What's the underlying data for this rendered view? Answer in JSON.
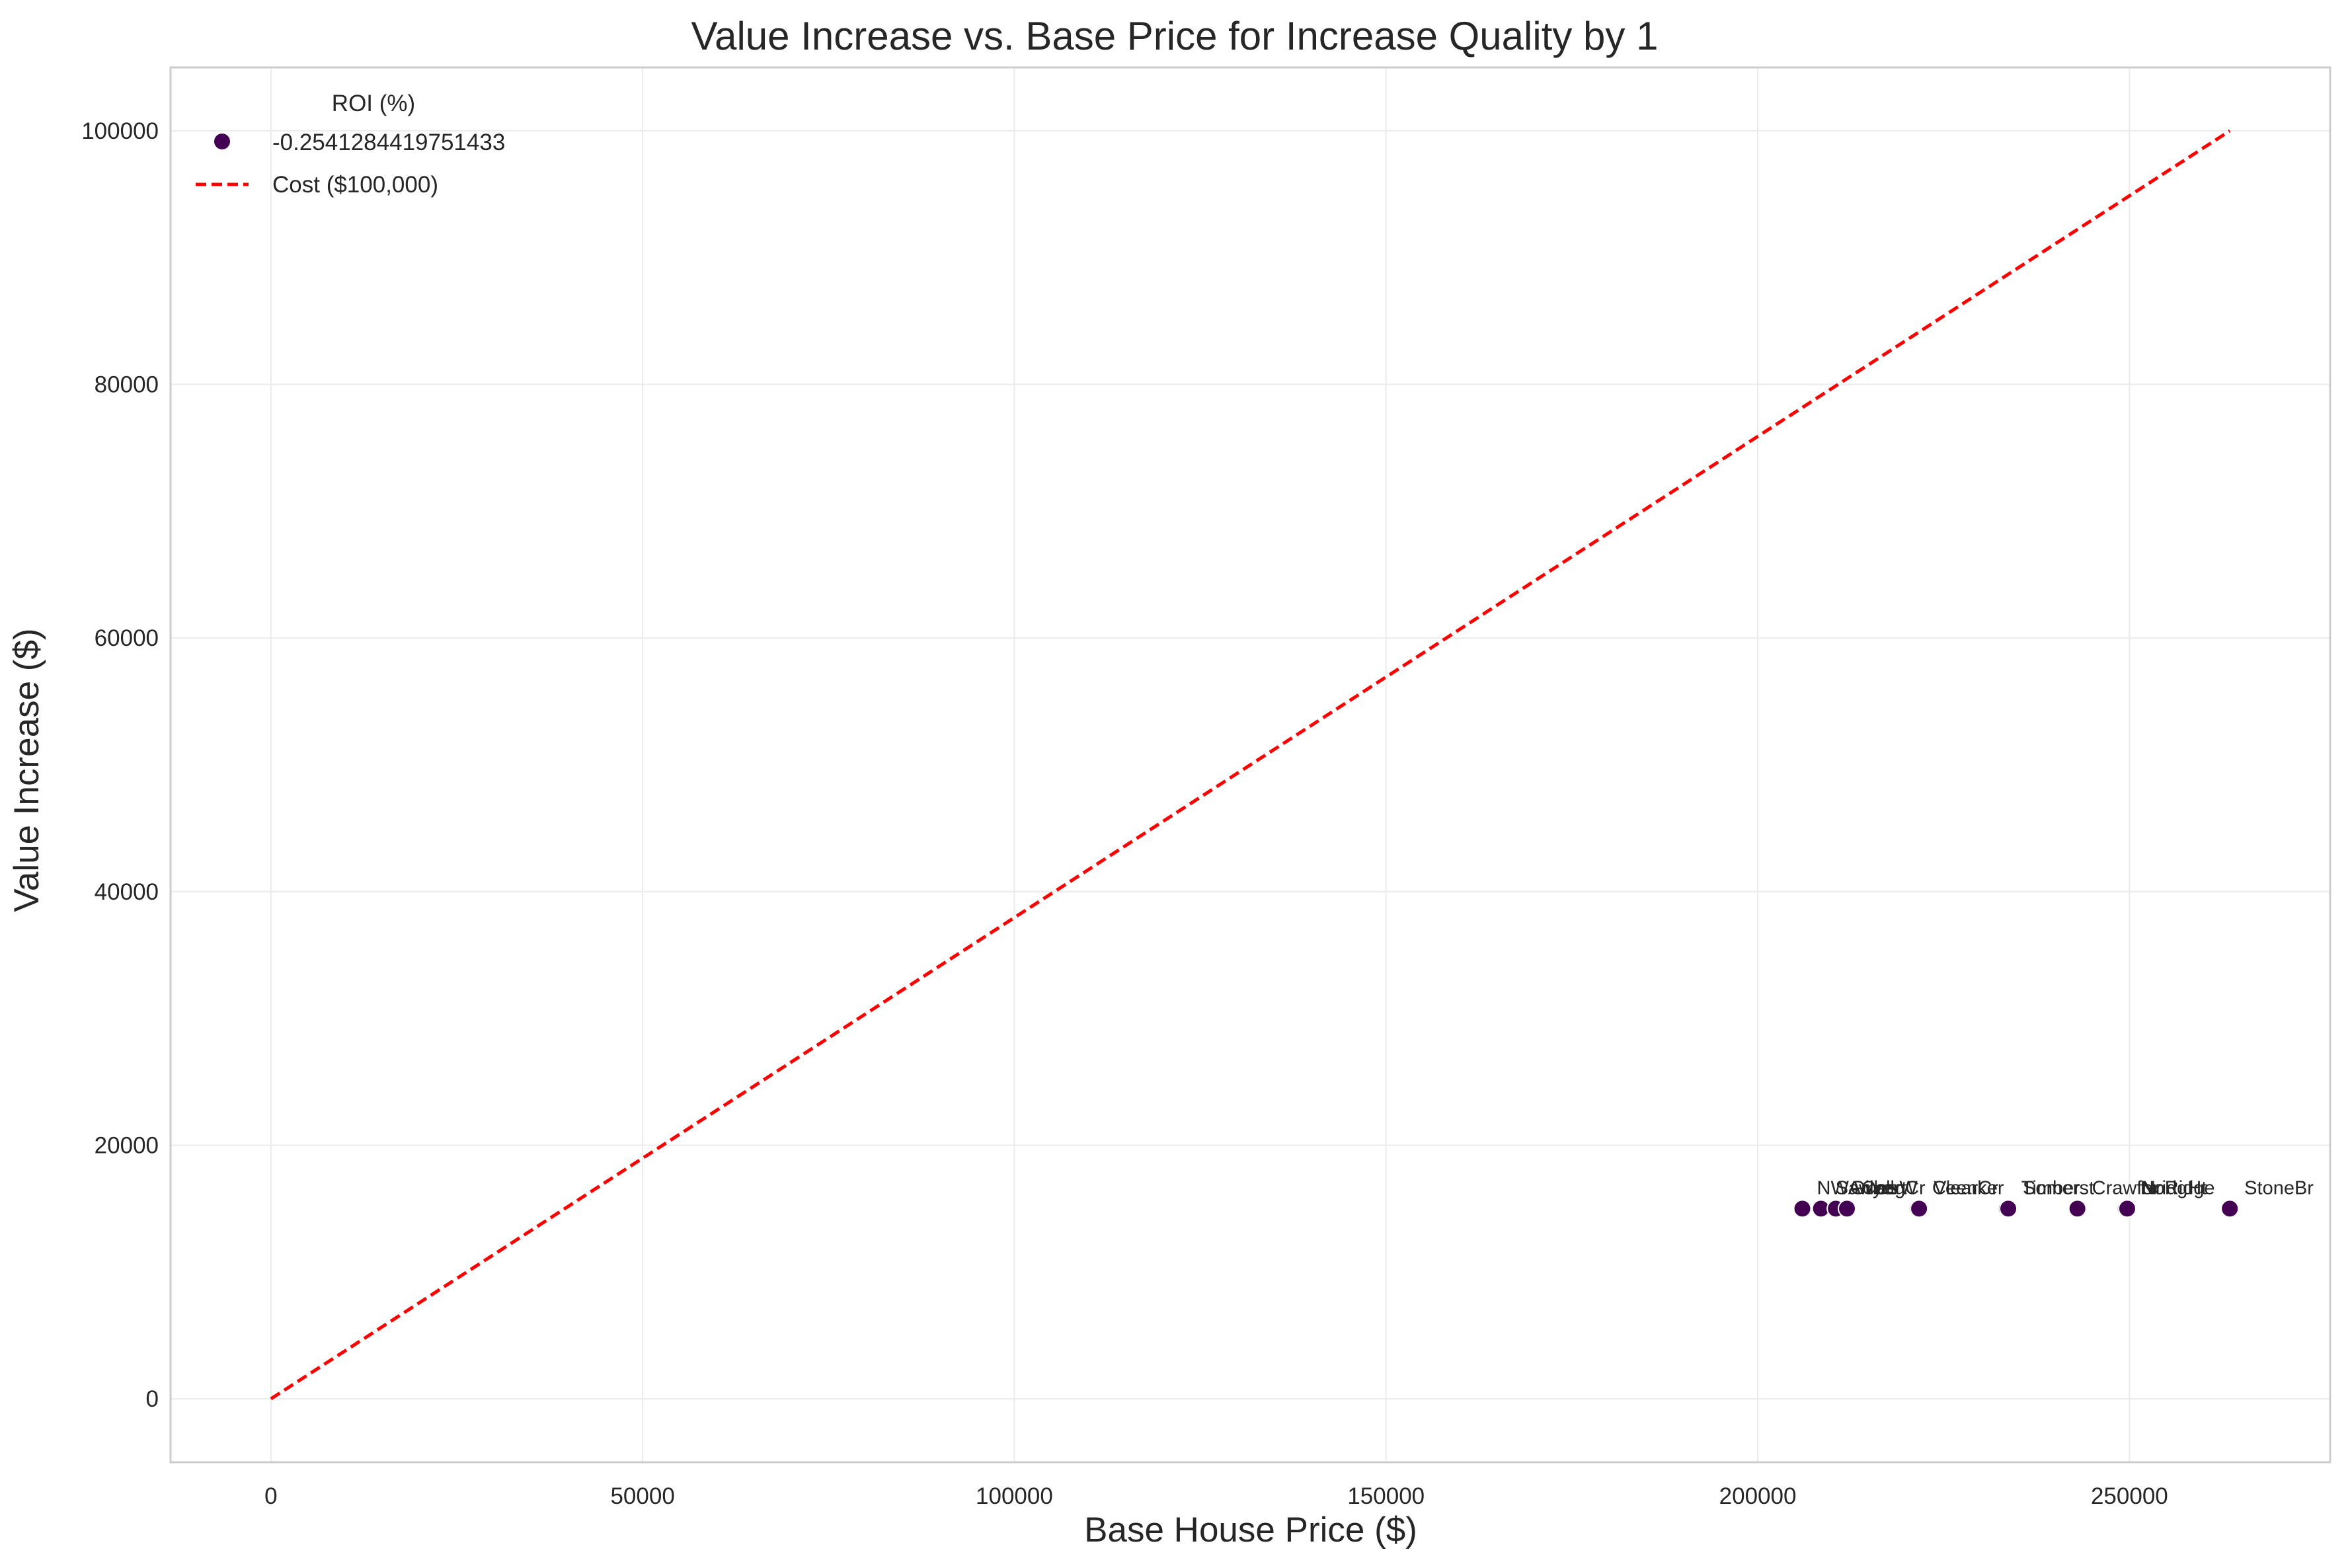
{
  "chart_data": {
    "type": "scatter",
    "title": "Value Increase vs. Base Price for Increase Quality by 1",
    "xlabel": "Base House Price ($)",
    "ylabel": "Value Increase ($)",
    "xlim": [
      -13500,
      277000
    ],
    "ylim": [
      -5000,
      105000
    ],
    "xticks": [
      0,
      50000,
      100000,
      150000,
      200000,
      250000
    ],
    "yticks": [
      0,
      20000,
      40000,
      60000,
      80000,
      100000
    ],
    "xtick_labels": [
      "0",
      "50000",
      "100000",
      "150000",
      "200000",
      "250000"
    ],
    "ytick_labels": [
      "0",
      "20000",
      "40000",
      "60000",
      "80000",
      "100000"
    ],
    "grid": true,
    "legend": {
      "placement": "top-left",
      "title": "ROI (%)",
      "entries": [
        "-0.2541284419751433",
        "Cost ($100,000)"
      ]
    },
    "series": [
      {
        "name": "-0.2541284419751433",
        "color": "#440154",
        "points": [
          {
            "label": "NWAmes",
            "x": 206000,
            "y": 15000
          },
          {
            "label": "SawyerW",
            "x": 208500,
            "y": 15000
          },
          {
            "label": "Gilbert",
            "x": 210500,
            "y": 15000
          },
          {
            "label": "CollgCr",
            "x": 212000,
            "y": 15000
          },
          {
            "label": "ClearCr",
            "x": 221500,
            "y": 15000
          },
          {
            "label": "Veenker",
            "x": 221700,
            "y": 15000
          },
          {
            "label": "Timber",
            "x": 233500,
            "y": 15000
          },
          {
            "label": "Somerst",
            "x": 233700,
            "y": 15000
          },
          {
            "label": "Crawfor",
            "x": 243000,
            "y": 15000
          },
          {
            "label": "NoRidge",
            "x": 249500,
            "y": 15000
          },
          {
            "label": "NridgHt",
            "x": 249700,
            "y": 15000
          },
          {
            "label": "StoneBr",
            "x": 263500,
            "y": 15000
          }
        ]
      },
      {
        "name": "Cost ($100,000)",
        "color": "#ff0000",
        "style": "dashed",
        "points": [
          {
            "x": 0,
            "y": 0
          },
          {
            "x": 263500,
            "y": 100000
          }
        ]
      }
    ],
    "annotations": [
      {
        "text": "NWAmes",
        "x": 206000,
        "y": 15000
      },
      {
        "text": "SawyerW",
        "x": 208500,
        "y": 15000
      },
      {
        "text": "Gilbert",
        "x": 210500,
        "y": 15000
      },
      {
        "text": "CollgCr",
        "x": 212000,
        "y": 15000
      },
      {
        "text": "ClearCr",
        "x": 221500,
        "y": 15000
      },
      {
        "text": "Veenker",
        "x": 221700,
        "y": 15000
      },
      {
        "text": "Timber",
        "x": 233500,
        "y": 15000
      },
      {
        "text": "Somerst",
        "x": 233700,
        "y": 15000
      },
      {
        "text": "Crawfor",
        "x": 243000,
        "y": 15000
      },
      {
        "text": "NoRidge",
        "x": 249500,
        "y": 15000
      },
      {
        "text": "NridgHt",
        "x": 249700,
        "y": 15000
      },
      {
        "text": "StoneBr",
        "x": 263500,
        "y": 15000
      }
    ]
  }
}
